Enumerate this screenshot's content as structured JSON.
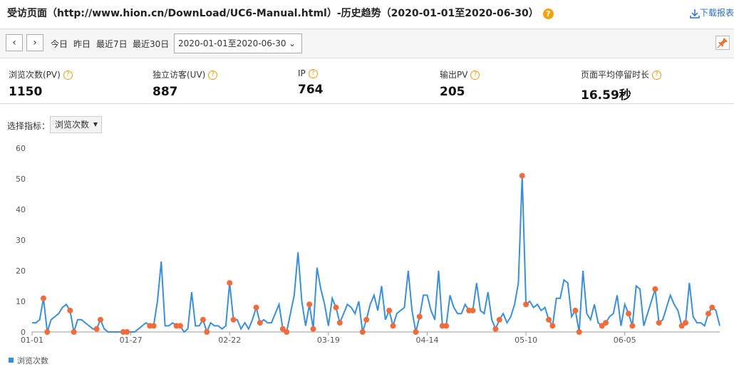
{
  "header": {
    "title": "受访页面（http://www.hion.cn/DownLoad/UC6-Manual.html）-历史趋势（2020-01-01至2020-06-30）",
    "download": "下载报表"
  },
  "toolbar": {
    "quick": [
      "今日",
      "昨日",
      "最近7日",
      "最近30日"
    ],
    "date_range": "2020-01-01至2020-06-30"
  },
  "stats": [
    {
      "label": "浏览次数(PV)",
      "value": 1150
    },
    {
      "label": "独立访客(UV)",
      "value": 887
    },
    {
      "label": "IP",
      "value": 764
    },
    {
      "label": "输出PV",
      "value": 205
    },
    {
      "label": "页面平均停留时长",
      "value": "16.59秒"
    }
  ],
  "selector": {
    "label": "选择指标：",
    "value": "浏览次数"
  },
  "chart_data": {
    "type": "line",
    "categories": [
      "01-01",
      null,
      null,
      null,
      null,
      null,
      null,
      null,
      null,
      null,
      null,
      null,
      null,
      null,
      null,
      null,
      null,
      null,
      null,
      null,
      null,
      null,
      null,
      null,
      null,
      null,
      "01-27",
      null,
      null,
      null,
      null,
      null,
      null,
      null,
      null,
      null,
      null,
      null,
      null,
      null,
      null,
      null,
      null,
      null,
      null,
      null,
      null,
      null,
      null,
      null,
      null,
      null,
      "02-22",
      null,
      null,
      null,
      null,
      null,
      null,
      null,
      null,
      null,
      null,
      null,
      null,
      null,
      null,
      null,
      null,
      null,
      null,
      null,
      null,
      null,
      null,
      null,
      null,
      null,
      "03-19",
      null,
      null,
      null,
      null,
      null,
      null,
      null,
      null,
      null,
      null,
      null,
      null,
      null,
      null,
      null,
      null,
      null,
      null,
      null,
      null,
      null,
      null,
      null,
      null,
      null,
      "04-14",
      null,
      null,
      null,
      null,
      null,
      null,
      null,
      null,
      null,
      null,
      null,
      null,
      null,
      null,
      null,
      null,
      null,
      null,
      null,
      null,
      null,
      null,
      null,
      null,
      null,
      "05-10",
      null,
      null,
      null,
      null,
      null,
      null,
      null,
      null,
      null,
      null,
      null,
      null,
      null,
      null,
      null,
      null,
      null,
      null,
      null,
      null,
      null,
      null,
      null,
      null,
      null,
      "06-05",
      null,
      null,
      null,
      null,
      null,
      null,
      null,
      null,
      null,
      null,
      null,
      null,
      null,
      null,
      null,
      null,
      null,
      null,
      null,
      null,
      null,
      null,
      null,
      null,
      null
    ],
    "series": [
      {
        "name": "浏览次数",
        "color": "#3a8fd8",
        "values": [
          3,
          3,
          4,
          11,
          0,
          4,
          5,
          6,
          8,
          9,
          7,
          0,
          4,
          4,
          3,
          2,
          1,
          1,
          4,
          1,
          0,
          0,
          0,
          0,
          0,
          0,
          0,
          0,
          1,
          2,
          3,
          2,
          2,
          10,
          23,
          2,
          2,
          3,
          2,
          2,
          0,
          1,
          13,
          2,
          2,
          4,
          0,
          3,
          2,
          2,
          1,
          2,
          16,
          4,
          4,
          1,
          3,
          1,
          4,
          8,
          3,
          4,
          3,
          3,
          6,
          9,
          1,
          0,
          6,
          12,
          26,
          10,
          2,
          9,
          1,
          21,
          14,
          9,
          2,
          11,
          8,
          3,
          6,
          9,
          8,
          6,
          10,
          0,
          4,
          9,
          12,
          7,
          15,
          4,
          7,
          2,
          6,
          7,
          8,
          20,
          7,
          0,
          5,
          12,
          12,
          7,
          4,
          20,
          2,
          2,
          12,
          8,
          6,
          6,
          9,
          7,
          7,
          16,
          7,
          6,
          13,
          4,
          1,
          4,
          6,
          3,
          5,
          9,
          16,
          51,
          9,
          10,
          8,
          9,
          7,
          8,
          4,
          2,
          11,
          11,
          17,
          16,
          5,
          7,
          0,
          20,
          6,
          4,
          9,
          3,
          2,
          3,
          5,
          6,
          12,
          2,
          9,
          6,
          2,
          15,
          14,
          2,
          6,
          10,
          14,
          3,
          4,
          8,
          12,
          9,
          7,
          2,
          3,
          16,
          5,
          3,
          3,
          2,
          6,
          8,
          7,
          2
        ]
      }
    ],
    "ylim": [
      0,
      60
    ],
    "yticks": [
      0,
      10,
      20,
      30,
      40,
      50,
      60
    ],
    "grid": false,
    "weekend_marker_color": "#f26b3a"
  }
}
